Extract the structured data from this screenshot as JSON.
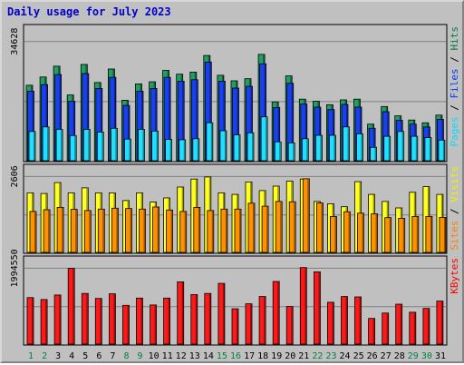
{
  "chart_data": {
    "type": "bar",
    "title": "Daily usage for July 2023",
    "categories": [
      "1",
      "2",
      "3",
      "4",
      "5",
      "6",
      "7",
      "8",
      "9",
      "10",
      "11",
      "12",
      "13",
      "14",
      "15",
      "16",
      "17",
      "18",
      "19",
      "20",
      "21",
      "22",
      "23",
      "24",
      "25",
      "26",
      "27",
      "28",
      "29",
      "30",
      "31"
    ],
    "weekend_days": [
      "1",
      "2",
      "8",
      "9",
      "15",
      "16",
      "22",
      "23",
      "29",
      "30"
    ],
    "panels": [
      {
        "id": "hits",
        "ymax_label": "34628",
        "ymax": 34628,
        "legend": [
          "Pages",
          "Files",
          "Hits"
        ],
        "legend_colors": [
          "#00e0ff",
          "#0040ff",
          "#008040"
        ],
        "series": [
          {
            "name": "Hits",
            "color": "#20a060",
            "values": [
              22000,
              24400,
              27500,
              19200,
              28000,
              22800,
              26700,
              17700,
              22400,
              23000,
              26300,
              25200,
              25800,
              30600,
              24900,
              23300,
              23900,
              30900,
              17200,
              24700,
              18000,
              17400,
              16400,
              17800,
              18000,
              10800,
              15900,
              13200,
              12000,
              11200,
              13400
            ]
          },
          {
            "name": "Files",
            "color": "#1840f0",
            "values": [
              20300,
              22200,
              25100,
              17400,
              25400,
              21100,
              24300,
              16200,
              20300,
              21100,
              24300,
              23200,
              23600,
              28700,
              23200,
              21200,
              21700,
              28200,
              15600,
              22600,
              16600,
              15700,
              15000,
              16500,
              15700,
              9600,
              14400,
              11900,
              10800,
              10000,
              12200
            ]
          },
          {
            "name": "Pages",
            "color": "#20e0ff",
            "values": [
              8700,
              10000,
              9300,
              7500,
              9300,
              8500,
              9600,
              6500,
              9300,
              8800,
              6400,
              6300,
              6600,
              11200,
              8900,
              7700,
              8300,
              12900,
              5700,
              5400,
              6600,
              7600,
              7600,
              10000,
              8000,
              4100,
              7300,
              8700,
              7300,
              6900,
              6200
            ]
          }
        ]
      },
      {
        "id": "visits",
        "ymax_label": "2606",
        "ymax": 2606,
        "legend": [
          "Sites",
          "Visits"
        ],
        "legend_colors": [
          "#ff8000",
          "#f0f000"
        ],
        "series": [
          {
            "name": "Visits",
            "color": "#ffff20",
            "values": [
              2050,
              2030,
              2400,
              2050,
              2220,
              2050,
              2050,
              1790,
              2050,
              1740,
              1880,
              2250,
              2520,
              2590,
              2050,
              2000,
              2420,
              2130,
              2280,
              2450,
              2520,
              1760,
              1680,
              1580,
              2430,
              2000,
              1760,
              1540,
              2070,
              2260,
              2000
            ]
          },
          {
            "name": "Sites",
            "color": "#ff9000",
            "values": [
              1420,
              1480,
              1560,
              1490,
              1450,
              1500,
              1530,
              1520,
              1500,
              1570,
              1470,
              1420,
              1560,
              1450,
              1500,
              1500,
              1700,
              1600,
              1760,
              1750,
              2530,
              1710,
              1250,
              1410,
              1360,
              1340,
              1210,
              1190,
              1250,
              1250,
              1220
            ]
          }
        ]
      },
      {
        "id": "kbytes",
        "ymax_label": "1994550",
        "ymax": 1994550,
        "legend": [
          "KBytes"
        ],
        "legend_colors": [
          "#ff0000"
        ],
        "series": [
          {
            "name": "KBytes",
            "color": "#ff1818",
            "values": [
              1230000,
              1180000,
              1300000,
              1990000,
              1340000,
              1210000,
              1330000,
              1030000,
              1220000,
              1040000,
              1220000,
              1640000,
              1310000,
              1340000,
              1600000,
              940000,
              1070000,
              1260000,
              1650000,
              1000000,
              2010000,
              1900000,
              1110000,
              1260000,
              1250000,
              690000,
              830000,
              1060000,
              850000,
              950000,
              1140000
            ]
          }
        ]
      }
    ]
  }
}
